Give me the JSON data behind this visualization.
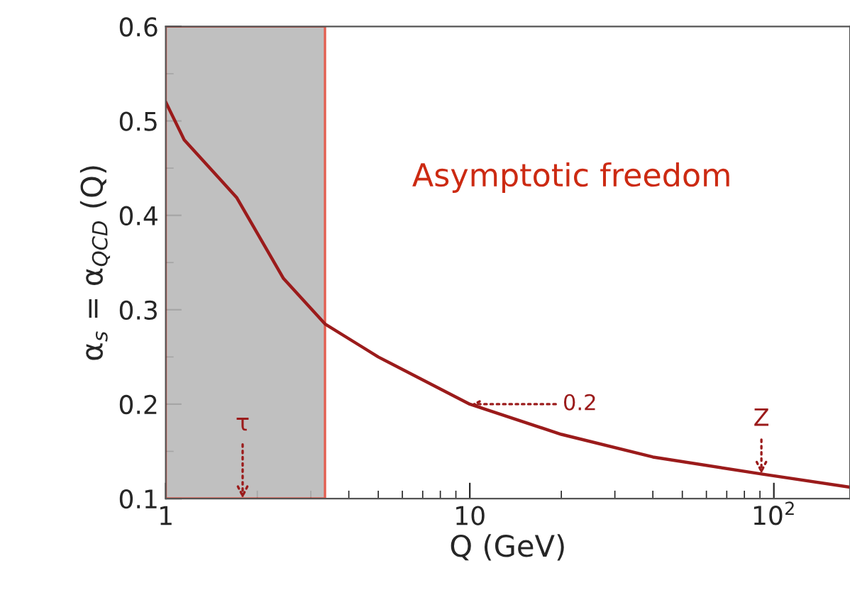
{
  "chart_data": {
    "type": "line",
    "xlabel": "Q (GeV)",
    "ylabel": "α$_{s}$ = α$_{QCD}$ (Q)",
    "log": "x",
    "xlim": [
      1,
      178
    ],
    "ylim": [
      0.1,
      0.6
    ],
    "xticks": [
      1,
      10,
      {
        "value": 100,
        "label": "10$^{2}$"
      }
    ],
    "yticks": [
      0.1,
      0.2,
      0.3,
      0.4,
      0.5,
      0.6
    ],
    "series": [
      {
        "color": "#9b1b1b",
        "x": [
          1,
          1.15,
          1.71,
          2.44,
          3.34,
          5,
          10,
          20,
          40,
          91,
          178
        ],
        "values": [
          0.52,
          0.48,
          0.419,
          0.333,
          0.285,
          0.25,
          0.2,
          0.168,
          0.144,
          0.126,
          0.112
        ]
      }
    ],
    "bands": [
      {
        "axis": "x",
        "from": 1,
        "to": 3.34,
        "color": "#b8b8b8"
      }
    ],
    "annotations": [
      "Asymptotic freedom",
      {
        "text": "τ",
        "x": 1.79,
        "y": 0.1
      },
      "0.2",
      {
        "text": "Z",
        "x": 91,
        "y": 0.126
      }
    ],
    "grid": false,
    "legend": false
  }
}
